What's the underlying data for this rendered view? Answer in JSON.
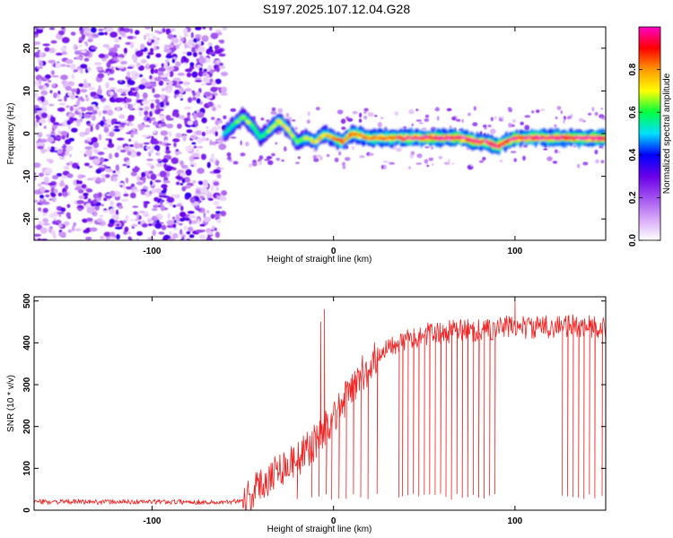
{
  "title": "S197.2025.107.12.04.G28",
  "chart_data": [
    {
      "type": "heatmap",
      "xlabel": "Height of straight line (km)",
      "ylabel": "Frequency (Hz)",
      "xlim": [
        -165,
        150
      ],
      "ylim": [
        -25,
        25
      ],
      "xticks": [
        -100,
        0,
        100
      ],
      "yticks": [
        -20,
        -10,
        0,
        10,
        20
      ],
      "colorbar": {
        "label": "Normalized spectral amplitude",
        "range": [
          0,
          1
        ],
        "ticks": [
          "0.0",
          "0.2",
          "0.4",
          "0.6",
          "0.8"
        ],
        "colors": [
          "#ffffff",
          "#d7a8f8",
          "#a050f0",
          "#6a00e8",
          "#0000ff",
          "#00e0ff",
          "#00ff40",
          "#ffff00",
          "#ff9900",
          "#ff0000",
          "#ff00c8"
        ]
      },
      "noise_region_x": [
        -165,
        -60
      ],
      "ridge": {
        "x": [
          -60,
          -55,
          -50,
          -45,
          -40,
          -35,
          -30,
          -25,
          -20,
          -15,
          -10,
          -5,
          0,
          5,
          10,
          20,
          30,
          40,
          50,
          60,
          70,
          80,
          85,
          90,
          95,
          100,
          110,
          120,
          130,
          140,
          150
        ],
        "freq": [
          0,
          2,
          4,
          2,
          -1,
          1,
          3,
          1,
          -2,
          -1,
          -2,
          0,
          -1,
          -2,
          0,
          -1,
          -1,
          -1,
          -1,
          -1,
          -1,
          -2,
          -2,
          -3,
          -2,
          -1,
          -1,
          -1,
          -1,
          -1,
          -1
        ],
        "amplitude": [
          0.35,
          0.45,
          0.5,
          0.5,
          0.4,
          0.5,
          0.6,
          0.55,
          0.5,
          0.55,
          0.6,
          0.65,
          0.7,
          0.75,
          0.75,
          0.75,
          0.8,
          0.85,
          0.9,
          0.9,
          0.9,
          0.85,
          0.85,
          0.9,
          0.85,
          0.9,
          0.9,
          0.9,
          0.95,
          0.95,
          0.95
        ]
      }
    },
    {
      "type": "line",
      "xlabel": "Height of straight line (km)",
      "ylabel": "SNR (10 * v/v)",
      "xlim": [
        -165,
        150
      ],
      "ylim": [
        0,
        510
      ],
      "xticks": [
        -100,
        0,
        100
      ],
      "yticks": [
        0,
        100,
        200,
        300,
        400,
        500
      ],
      "color": "#ee2222",
      "series": [
        {
          "x": [
            -165,
            -140,
            -120,
            -100,
            -80,
            -60,
            -50,
            -45,
            -40,
            -35,
            -30,
            -25,
            -20,
            -15,
            -10,
            -5,
            0,
            5,
            10,
            15,
            20,
            25,
            30,
            40,
            50,
            60,
            70,
            80,
            90,
            100,
            110,
            120,
            130,
            140,
            150
          ],
          "values": [
            20,
            20,
            20,
            20,
            20,
            18,
            25,
            40,
            60,
            85,
            100,
            110,
            120,
            140,
            165,
            195,
            225,
            255,
            290,
            320,
            345,
            375,
            395,
            410,
            420,
            425,
            430,
            430,
            435,
            440,
            435,
            440,
            440,
            440,
            435
          ],
          "dropouts_x": [
            -20,
            -12,
            -8,
            -4,
            -1,
            3,
            7,
            11,
            15,
            19,
            24,
            36,
            38,
            41,
            44,
            47,
            50,
            53,
            56,
            59,
            62,
            65,
            68,
            71,
            74,
            77,
            80,
            83,
            86,
            89,
            126,
            129,
            132,
            135,
            138,
            141,
            144,
            148
          ],
          "dropouts_min": 25,
          "spikes": [
            {
              "x": -7,
              "value": 450
            },
            {
              "x": -5,
              "value": 480
            },
            {
              "x": 100,
              "value": 500
            }
          ]
        }
      ]
    }
  ]
}
